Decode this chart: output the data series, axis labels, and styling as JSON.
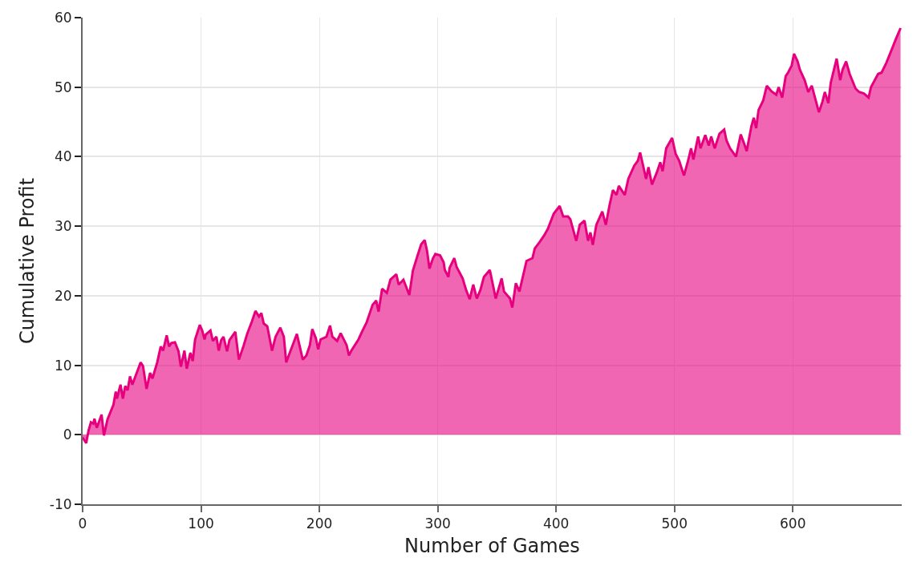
{
  "chart_data": {
    "type": "area",
    "xlabel": "Number of Games",
    "ylabel": "Cumulative Profit",
    "x": [
      0,
      3,
      5,
      7,
      9,
      10,
      12,
      16,
      18,
      21,
      26,
      28,
      29,
      32,
      34,
      36,
      38,
      40,
      42,
      49,
      51,
      54,
      57,
      59,
      63,
      66,
      68,
      71,
      73,
      75,
      78,
      81,
      83,
      86,
      88,
      91,
      93,
      95,
      99,
      101,
      103,
      104,
      108,
      110,
      113,
      115,
      117,
      119,
      122,
      124,
      129,
      132,
      136,
      139,
      143,
      146,
      149,
      151,
      153,
      156,
      160,
      163,
      167,
      170,
      172,
      175,
      177,
      181,
      186,
      189,
      192,
      194,
      197,
      199,
      201,
      206,
      209,
      211,
      215,
      218,
      223,
      225,
      227,
      233,
      236,
      240,
      242,
      245,
      248,
      250,
      253,
      257,
      260,
      265,
      267,
      271,
      276,
      279,
      283,
      286,
      289,
      291,
      293,
      296,
      298,
      302,
      305,
      306,
      309,
      310,
      314,
      316,
      321,
      324,
      327,
      330,
      333,
      336,
      339,
      344,
      349,
      354,
      356,
      361,
      363,
      366,
      369,
      375,
      380,
      382,
      386,
      390,
      393,
      398,
      403,
      406,
      410,
      412,
      417,
      420,
      424,
      427,
      429,
      431,
      434,
      439,
      442,
      445,
      448,
      451,
      453,
      458,
      461,
      466,
      469,
      471,
      476,
      478,
      481,
      485,
      488,
      490,
      493,
      498,
      501,
      504,
      508,
      511,
      514,
      516,
      520,
      522,
      526,
      529,
      531,
      534,
      538,
      542,
      544,
      547,
      552,
      556,
      559,
      561,
      565,
      567,
      569,
      571,
      575,
      578,
      582,
      586,
      588,
      591,
      594,
      596,
      599,
      601,
      604,
      606,
      610,
      613,
      616,
      622,
      625,
      627,
      630,
      632,
      637,
      640,
      642,
      645,
      648,
      653,
      656,
      660,
      664,
      666,
      672,
      675,
      679,
      684,
      687,
      691
    ],
    "series": [
      {
        "color": "#e6007e",
        "values": [
          -0.4,
          -1.2,
          0.6,
          1.8,
          1.6,
          2.3,
          1.0,
          2.9,
          -0.1,
          2.2,
          4.3,
          6.2,
          5.2,
          7.2,
          5.2,
          7.0,
          6.4,
          8.4,
          7.2,
          10.4,
          9.9,
          6.6,
          8.9,
          8.1,
          10.4,
          12.7,
          12.1,
          14.3,
          12.7,
          13.2,
          13.3,
          12.0,
          9.8,
          12.1,
          9.5,
          11.8,
          10.6,
          13.7,
          15.8,
          15.0,
          13.7,
          14.4,
          15.0,
          13.5,
          14.1,
          12.1,
          13.6,
          14.1,
          12.0,
          13.6,
          14.8,
          10.8,
          12.8,
          14.5,
          16.3,
          17.8,
          17.0,
          17.5,
          16.0,
          15.6,
          12.1,
          14.1,
          15.4,
          14.1,
          10.4,
          11.8,
          12.7,
          14.5,
          10.8,
          11.4,
          12.9,
          15.2,
          13.9,
          12.3,
          13.7,
          14.1,
          15.7,
          14.1,
          13.5,
          14.6,
          12.9,
          11.4,
          12.1,
          13.7,
          14.8,
          16.2,
          17.2,
          18.7,
          19.3,
          17.7,
          21.0,
          20.4,
          22.3,
          23.1,
          21.6,
          22.3,
          20.1,
          23.6,
          25.8,
          27.4,
          28.0,
          26.4,
          23.9,
          25.4,
          26.0,
          25.8,
          24.8,
          23.7,
          22.7,
          24.0,
          25.4,
          24.1,
          22.5,
          20.8,
          19.5,
          21.6,
          19.6,
          20.8,
          22.7,
          23.7,
          19.6,
          22.5,
          20.6,
          19.6,
          18.3,
          21.8,
          20.6,
          25.0,
          25.4,
          26.8,
          27.7,
          28.7,
          29.6,
          31.8,
          32.9,
          31.4,
          31.4,
          31.0,
          27.9,
          30.2,
          30.8,
          27.9,
          29.1,
          27.3,
          30.2,
          32.1,
          30.2,
          32.9,
          35.2,
          34.5,
          35.8,
          34.5,
          36.8,
          38.7,
          39.4,
          40.6,
          36.8,
          38.5,
          36.0,
          37.7,
          39.2,
          37.9,
          41.2,
          42.7,
          40.4,
          39.4,
          37.3,
          39.1,
          41.2,
          39.6,
          42.9,
          41.2,
          43.1,
          41.6,
          42.9,
          41.2,
          43.3,
          43.9,
          42.3,
          41.2,
          40.0,
          43.2,
          41.8,
          40.8,
          44.4,
          45.6,
          44.1,
          46.7,
          48.1,
          50.2,
          49.4,
          48.9,
          50.0,
          48.5,
          51.6,
          52.1,
          53.1,
          54.8,
          53.7,
          52.5,
          51.0,
          49.3,
          50.2,
          46.4,
          47.9,
          49.3,
          47.7,
          50.6,
          54.1,
          51.0,
          52.5,
          53.7,
          51.9,
          49.8,
          49.3,
          49.1,
          48.5,
          50.0,
          51.9,
          52.1,
          53.5,
          55.6,
          56.9,
          58.5
        ]
      }
    ],
    "xlim": [
      0,
      692
    ],
    "xticks": [
      0,
      100,
      200,
      300,
      400,
      500,
      600
    ],
    "ylim": [
      -10,
      60
    ],
    "yticks": [
      -10,
      0,
      10,
      20,
      30,
      40,
      50,
      60
    ],
    "grid": true
  }
}
